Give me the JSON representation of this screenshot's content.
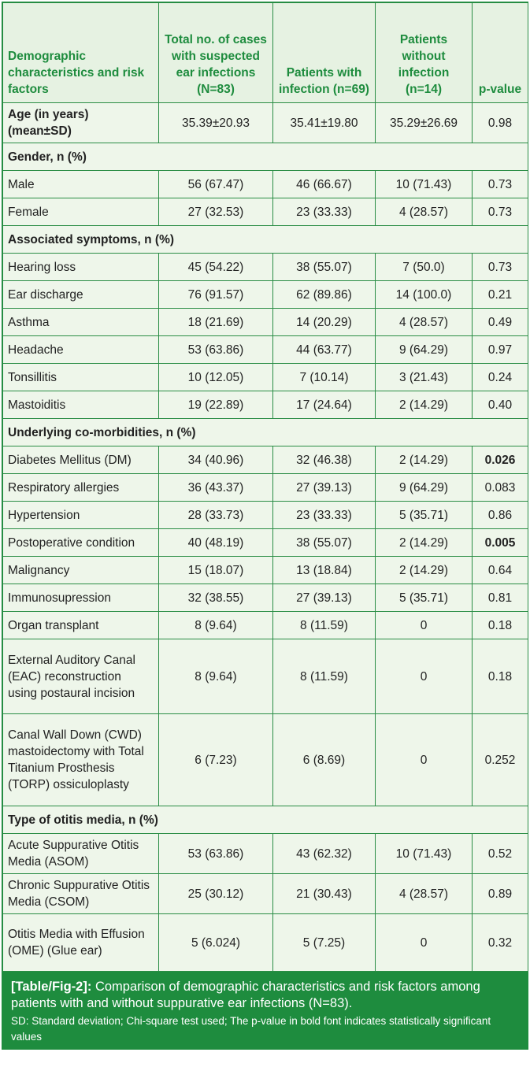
{
  "table": {
    "headers": [
      "Demographic characteristics and risk factors",
      "Total no. of cases with suspected ear infections (N=83)",
      "Patients with infection (n=69)",
      "Patients without infection (n=14)",
      "p-value"
    ],
    "rows": [
      {
        "type": "data",
        "cells": [
          "Age (in years) (mean±SD)",
          "35.39±20.93",
          "35.41±19.80",
          "35.29±26.69",
          "0.98"
        ],
        "bold_label": true
      },
      {
        "type": "section",
        "label": "Gender, n (%)"
      },
      {
        "type": "data",
        "cells": [
          "Male",
          "56 (67.47)",
          "46 (66.67)",
          "10 (71.43)",
          "0.73"
        ]
      },
      {
        "type": "data",
        "cells": [
          "Female",
          "27 (32.53)",
          "23 (33.33)",
          "4 (28.57)",
          "0.73"
        ]
      },
      {
        "type": "section",
        "label": "Associated symptoms, n (%)"
      },
      {
        "type": "data",
        "cells": [
          "Hearing loss",
          "45 (54.22)",
          "38 (55.07)",
          "7 (50.0)",
          "0.73"
        ]
      },
      {
        "type": "data",
        "cells": [
          "Ear discharge",
          "76 (91.57)",
          "62 (89.86)",
          "14 (100.0)",
          "0.21"
        ]
      },
      {
        "type": "data",
        "cells": [
          "Asthma",
          "18 (21.69)",
          "14 (20.29)",
          "4 (28.57)",
          "0.49"
        ]
      },
      {
        "type": "data",
        "cells": [
          "Headache",
          "53 (63.86)",
          "44 (63.77)",
          "9 (64.29)",
          "0.97"
        ]
      },
      {
        "type": "data",
        "cells": [
          "Tonsillitis",
          "10 (12.05)",
          "7 (10.14)",
          "3 (21.43)",
          "0.24"
        ]
      },
      {
        "type": "data",
        "cells": [
          "Mastoiditis",
          "19 (22.89)",
          "17 (24.64)",
          "2 (14.29)",
          "0.40"
        ]
      },
      {
        "type": "section",
        "label": "Underlying co-morbidities, n (%)"
      },
      {
        "type": "data",
        "cells": [
          "Diabetes Mellitus (DM)",
          "34 (40.96)",
          "32 (46.38)",
          "2 (14.29)",
          "0.026"
        ],
        "bold_p": true
      },
      {
        "type": "data",
        "cells": [
          "Respiratory allergies",
          "36 (43.37)",
          "27 (39.13)",
          "9 (64.29)",
          "0.083"
        ]
      },
      {
        "type": "data",
        "cells": [
          "Hypertension",
          "28 (33.73)",
          "23 (33.33)",
          "5 (35.71)",
          "0.86"
        ]
      },
      {
        "type": "data",
        "cells": [
          "Postoperative condition",
          "40 (48.19)",
          "38 (55.07)",
          "2 (14.29)",
          "0.005"
        ],
        "bold_p": true
      },
      {
        "type": "data",
        "cells": [
          "Malignancy",
          "15 (18.07)",
          "13 (18.84)",
          "2 (14.29)",
          "0.64"
        ]
      },
      {
        "type": "data",
        "cells": [
          "Immunosupression",
          "32 (38.55)",
          "27 (39.13)",
          "5 (35.71)",
          "0.81"
        ]
      },
      {
        "type": "data",
        "cells": [
          "Organ transplant",
          "8 (9.64)",
          "8 (11.59)",
          "0",
          "0.18"
        ]
      },
      {
        "type": "data",
        "cells": [
          "External Auditory Canal (EAC) reconstruction using postaural incision",
          "8 (9.64)",
          "8 (11.59)",
          "0",
          "0.18"
        ]
      },
      {
        "type": "data",
        "cells": [
          "Canal Wall Down (CWD) mastoidectomy with Total Titanium Prosthesis (TORP) ossiculoplasty",
          "6 (7.23)",
          "6 (8.69)",
          "0",
          "0.252"
        ]
      },
      {
        "type": "section",
        "label": "Type of otitis media, n (%)"
      },
      {
        "type": "data",
        "cells": [
          "Acute Suppurative Otitis Media (ASOM)",
          "53 (63.86)",
          "43 (62.32)",
          "10 (71.43)",
          "0.52"
        ]
      },
      {
        "type": "data",
        "cells": [
          "Chronic Suppurative Otitis Media (CSOM)",
          "25 (30.12)",
          "21 (30.43)",
          "4 (28.57)",
          "0.89"
        ]
      },
      {
        "type": "data",
        "cells": [
          "Otitis Media with Effusion (OME) (Glue ear)",
          "5 (6.024)",
          "5 (7.25)",
          "0",
          "0.32"
        ]
      }
    ]
  },
  "caption": {
    "tag": "[Table/Fig-2]:",
    "text": " Comparison of demographic characteristics and risk factors among patients with and without suppurative ear infections (N=83).",
    "note": "SD: Standard deviation; Chi-square test used; The p-value in bold font indicates statistically significant values"
  },
  "colors": {
    "border": "#2a8d45",
    "header_text": "#1e8c3e",
    "cell_bg": "#eef6ea",
    "header_bg": "#e6f2e2",
    "caption_bg": "#1e8c3e"
  }
}
